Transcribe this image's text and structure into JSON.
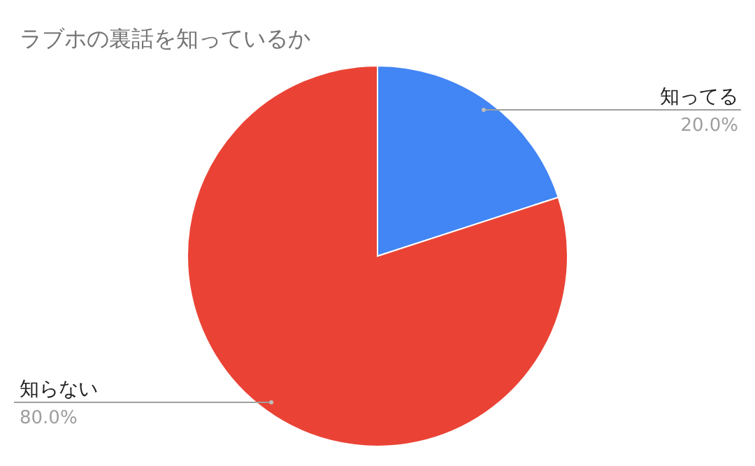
{
  "chart_data": {
    "type": "pie",
    "title": "ラブホの裏話を知っているか",
    "categories": [
      "知ってる",
      "知らない"
    ],
    "values": [
      20,
      80
    ],
    "colors": [
      "#4285f4",
      "#ea4335"
    ],
    "value_labels": [
      "20.0%",
      "80.0%"
    ]
  }
}
